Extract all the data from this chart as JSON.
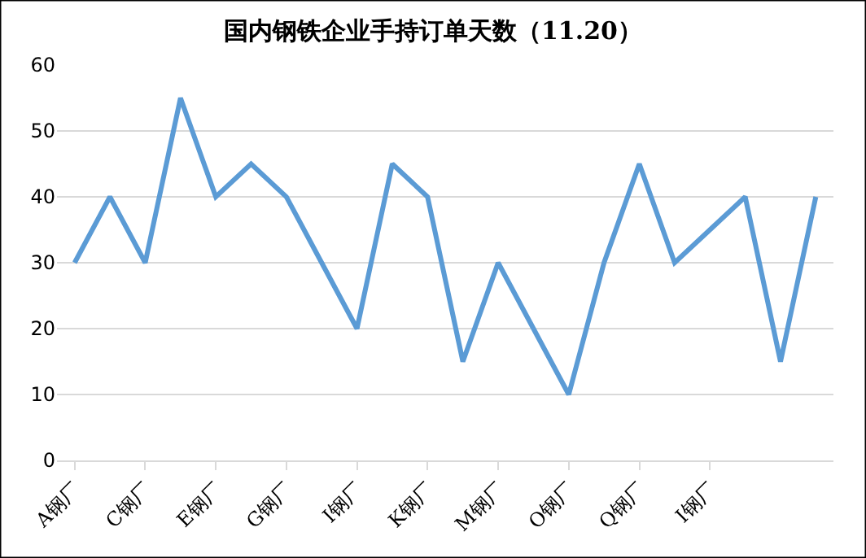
{
  "chart_data": {
    "type": "line",
    "title": "国内钢铁企业手持订单天数（11.20）",
    "categories": [
      "A钢厂",
      null,
      "C钢厂",
      null,
      "E钢厂",
      null,
      "G钢厂",
      null,
      "I钢厂",
      null,
      "K钢厂",
      null,
      "M钢厂",
      null,
      "O钢厂",
      null,
      "Q钢厂",
      null,
      "I钢厂",
      null,
      null,
      null
    ],
    "series": [
      {
        "color": "#5b9bd5",
        "values": [
          30,
          40,
          30,
          55,
          40,
          45,
          40,
          30,
          20,
          45,
          40,
          15,
          30,
          20,
          10,
          30,
          45,
          30,
          35,
          40,
          15,
          40
        ]
      }
    ],
    "ylim": [
      0,
      60
    ],
    "yticks": [
      0,
      10,
      20,
      30,
      40,
      50,
      60
    ],
    "grid": "y",
    "marker": "none",
    "line_style": "solid"
  }
}
